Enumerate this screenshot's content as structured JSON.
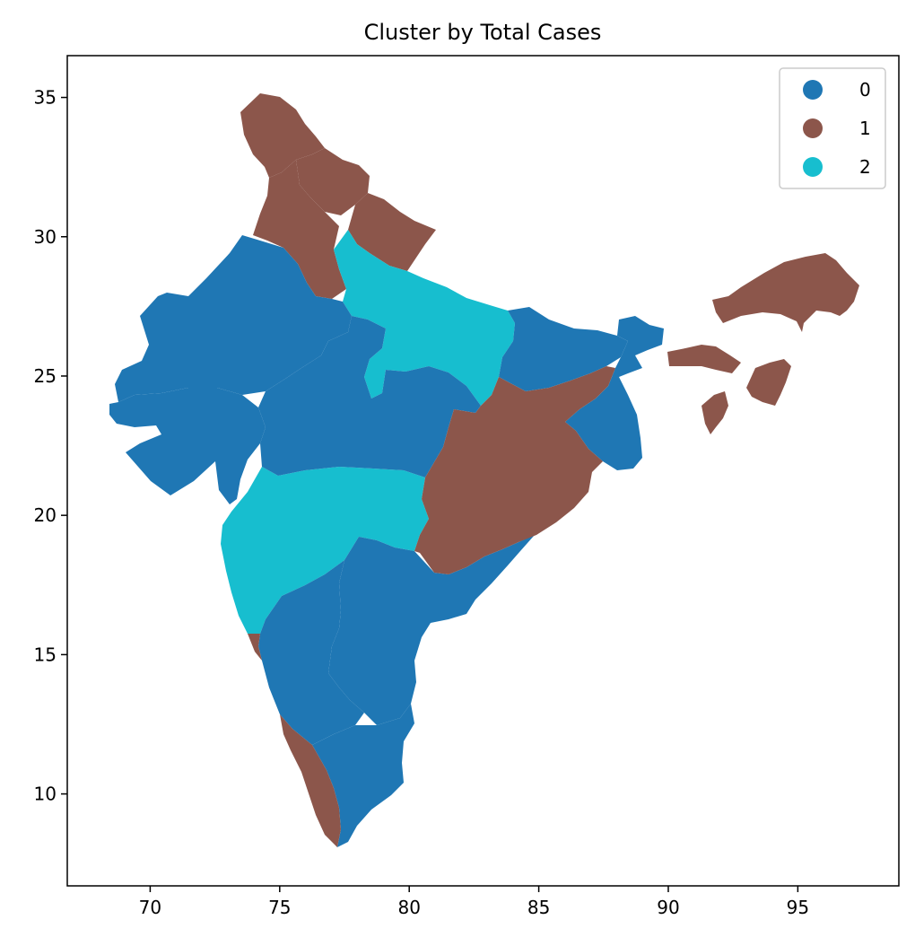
{
  "chart_data": {
    "type": "choropleth-map",
    "title": "Cluster by Total Cases",
    "xlabel": "",
    "ylabel": "",
    "xlim": [
      66.8,
      98.9
    ],
    "ylim": [
      6.7,
      36.5
    ],
    "x_ticks": [
      70,
      75,
      80,
      85,
      90,
      95
    ],
    "y_ticks": [
      10,
      15,
      20,
      25,
      30,
      35
    ],
    "legend_position": "top-right",
    "grid": false,
    "categories": [
      {
        "label": "0",
        "color": "#1f77b4"
      },
      {
        "label": "1",
        "color": "#8c564b"
      },
      {
        "label": "2",
        "color": "#17becf"
      }
    ]
  }
}
